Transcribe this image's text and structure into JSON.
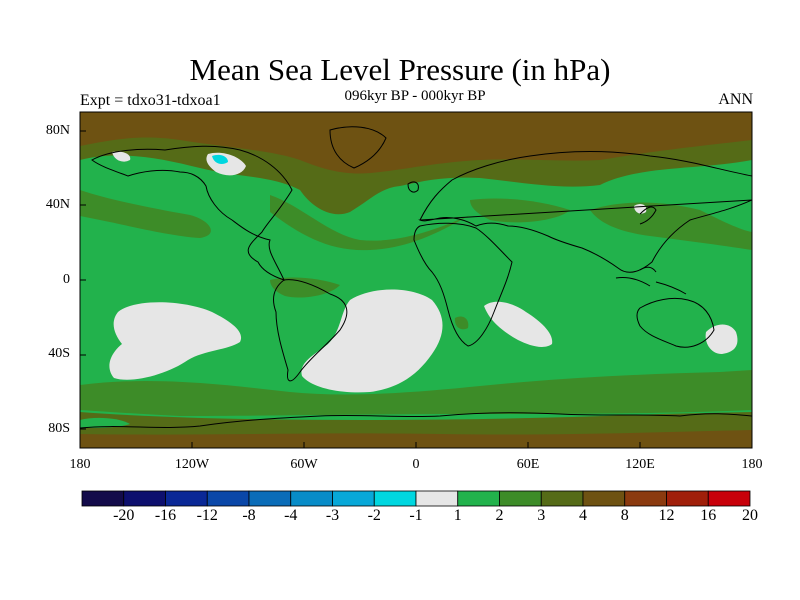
{
  "title": "Mean Sea Level Pressure (in hPa)",
  "subtitle": "096kyr BP - 000kyr BP",
  "experiment": "Expt = tdxo31-tdxoa1",
  "season": "ANN",
  "lat_labels": [
    "80N",
    "40N",
    "0",
    "40S",
    "80S"
  ],
  "lon_labels": [
    "180",
    "120W",
    "60W",
    "0",
    "60E",
    "120E",
    "180"
  ],
  "legend": {
    "labels": [
      "-20",
      "-16",
      "-12",
      "-8",
      "-4",
      "-3",
      "-2",
      "-1",
      "1",
      "2",
      "3",
      "4",
      "8",
      "12",
      "16",
      "20"
    ],
    "colors": [
      "#130b4a",
      "#0d0f6e",
      "#0a2896",
      "#0a47a8",
      "#0a6cb8",
      "#088cc8",
      "#08a8d8",
      "#00d7e0",
      "#e6e6e6",
      "#22b24c",
      "#3d8c28",
      "#556b17",
      "#6e5212",
      "#8b3a0f",
      "#a01f0a",
      "#c8000a"
    ]
  },
  "colors": {
    "light": "#e6e6e6",
    "green": "#22b24c",
    "olive_green": "#3d8c28",
    "olive": "#556b17",
    "brown": "#6e5212",
    "cyan": "#00d7e0"
  }
}
